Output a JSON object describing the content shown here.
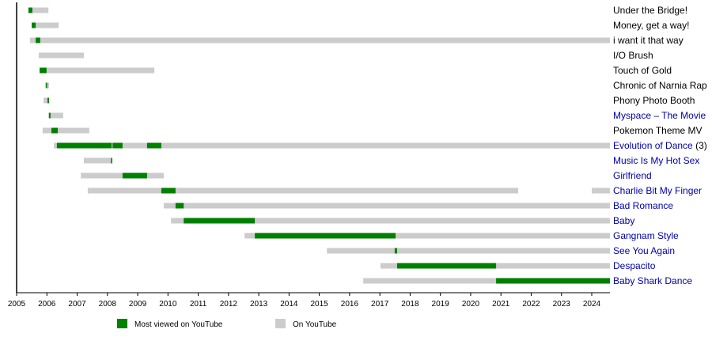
{
  "chart_data": {
    "type": "timeline",
    "title": "",
    "xlim": [
      2005,
      2024.6
    ],
    "x_ticks": [
      "2005",
      "2006",
      "2007",
      "2008",
      "2009",
      "2010",
      "2011",
      "2012",
      "2013",
      "2014",
      "2015",
      "2016",
      "2017",
      "2018",
      "2019",
      "2020",
      "2021",
      "2022",
      "2023",
      "2024"
    ],
    "colors": {
      "most_viewed": "#008000",
      "on_youtube": "#cccccc",
      "link": "#0000aa",
      "text": "#000000"
    },
    "legend": {
      "placement": "bottom",
      "most_viewed": "Most viewed on YouTube",
      "on_youtube": "On YouTube"
    },
    "rows": [
      {
        "label": "Under the Bridge!",
        "link": false,
        "suffix": "",
        "on": [
          [
            2005.39,
            2006.05
          ]
        ],
        "most": [
          [
            2005.39,
            2005.52
          ]
        ]
      },
      {
        "label": "Money, get a way!",
        "link": false,
        "suffix": "",
        "on": [
          [
            2005.5,
            2006.39
          ]
        ],
        "most": [
          [
            2005.5,
            2005.63
          ]
        ]
      },
      {
        "label": "i want it that way",
        "link": false,
        "suffix": "",
        "on": [
          [
            2005.44,
            2024.6
          ]
        ],
        "most": [
          [
            2005.63,
            2005.78
          ]
        ]
      },
      {
        "label": "I/O Brush",
        "link": false,
        "suffix": "",
        "on": [
          [
            2005.73,
            2007.22
          ]
        ],
        "most": []
      },
      {
        "label": "Touch of Gold",
        "link": false,
        "suffix": "",
        "on": [
          [
            2005.76,
            2009.55
          ]
        ],
        "most": [
          [
            2005.76,
            2005.99
          ]
        ]
      },
      {
        "label": "Chronic of Narnia Rap",
        "link": false,
        "suffix": "",
        "on": [
          [
            2005.94,
            2006.07
          ]
        ],
        "most": [
          [
            2005.97,
            2006.0
          ]
        ]
      },
      {
        "label": "Phony Photo Booth",
        "link": false,
        "suffix": "",
        "on": [
          [
            2005.89,
            2006.07
          ]
        ],
        "most": [
          [
            2006.02,
            2006.07
          ]
        ]
      },
      {
        "label": "Myspace – The Movie",
        "link": true,
        "suffix": "",
        "on": [
          [
            2006.05,
            2006.54
          ]
        ],
        "most": [
          [
            2006.07,
            2006.12
          ]
        ]
      },
      {
        "label": "Pokemon Theme MV",
        "link": false,
        "suffix": "",
        "on": [
          [
            2005.86,
            2007.4
          ]
        ],
        "most": [
          [
            2006.15,
            2006.36
          ]
        ]
      },
      {
        "label": "Evolution of Dance",
        "link": true,
        "suffix": "(3)",
        "on": [
          [
            2006.23,
            2024.6
          ]
        ],
        "most": [
          [
            2006.33,
            2008.14
          ],
          [
            2008.17,
            2008.5
          ],
          [
            2009.31,
            2009.78
          ]
        ]
      },
      {
        "label": "Music Is My Hot Sex",
        "link": true,
        "suffix": "",
        "on": [
          [
            2007.22,
            2008.16
          ]
        ],
        "most": [
          [
            2008.12,
            2008.16
          ]
        ]
      },
      {
        "label": "Girlfriend",
        "link": true,
        "suffix": "",
        "on": [
          [
            2007.12,
            2009.86
          ]
        ],
        "most": [
          [
            2008.5,
            2009.31
          ]
        ]
      },
      {
        "label": "Charlie Bit My Finger",
        "link": true,
        "suffix": "",
        "on": [
          [
            2007.35,
            2021.57
          ],
          [
            2024.0,
            2024.6
          ]
        ],
        "most": [
          [
            2009.78,
            2010.25
          ]
        ]
      },
      {
        "label": "Bad Romance",
        "link": true,
        "suffix": "",
        "on": [
          [
            2009.86,
            2024.6
          ]
        ],
        "most": [
          [
            2010.25,
            2010.52
          ]
        ]
      },
      {
        "label": "Baby",
        "link": true,
        "suffix": "",
        "on": [
          [
            2010.1,
            2024.6
          ]
        ],
        "most": [
          [
            2010.52,
            2012.87
          ]
        ]
      },
      {
        "label": "Gangnam Style",
        "link": true,
        "suffix": "",
        "on": [
          [
            2012.53,
            2024.6
          ]
        ],
        "most": [
          [
            2012.87,
            2017.52
          ]
        ]
      },
      {
        "label": "See You Again",
        "link": true,
        "suffix": "",
        "on": [
          [
            2015.25,
            2024.6
          ]
        ],
        "most": [
          [
            2017.49,
            2017.57
          ]
        ]
      },
      {
        "label": "Despacito",
        "link": true,
        "suffix": "",
        "on": [
          [
            2017.02,
            2024.6
          ]
        ],
        "most": [
          [
            2017.57,
            2020.84
          ]
        ]
      },
      {
        "label": "Baby Shark Dance",
        "link": true,
        "suffix": "",
        "on": [
          [
            2016.45,
            2024.6
          ]
        ],
        "most": [
          [
            2020.84,
            2024.6
          ]
        ]
      }
    ]
  }
}
